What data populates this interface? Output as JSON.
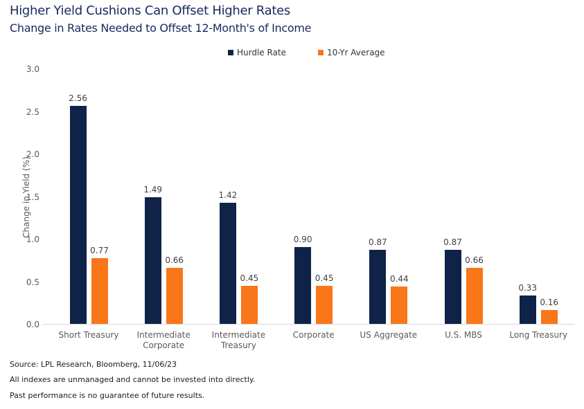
{
  "title": "Higher Yield Cushions Can Offset Higher Rates",
  "subtitle": "Change in Rates Needed to Offset 12-Month's of Income",
  "colors": {
    "title_navy": "#17295E",
    "hurdle_rate_navy": "#0F2248",
    "ten_yr_orange": "#F97619",
    "axis_text_gray": "#595959",
    "value_label_gray": "#404040",
    "baseline_gray": "#d9d9d9"
  },
  "legend": [
    {
      "label": "Hurdle Rate",
      "color": "#0F2248",
      "swatch_icon": "square-swatch"
    },
    {
      "label": "10-Yr Average",
      "color": "#F97619",
      "swatch_icon": "square-swatch"
    }
  ],
  "chart_data": {
    "type": "bar",
    "categories": [
      "Short Treasury",
      "Intermediate Corporate",
      "Intermediate Treasury",
      "Corporate",
      "US Aggregate",
      "U.S. MBS",
      "Long Treasury"
    ],
    "series": [
      {
        "name": "Hurdle Rate",
        "color": "#0F2248",
        "values": [
          2.56,
          1.49,
          1.42,
          0.9,
          0.87,
          0.87,
          0.33
        ]
      },
      {
        "name": "10-Yr Average",
        "color": "#F97619",
        "values": [
          0.77,
          0.66,
          0.45,
          0.45,
          0.44,
          0.66,
          0.16
        ]
      }
    ],
    "title": "Higher Yield Cushions Can Offset Higher Rates",
    "subtitle": "Change in Rates Needed to Offset 12-Month's of Income",
    "xlabel": "",
    "ylabel": "Change in Yield (%)",
    "ylim": [
      0.0,
      3.0
    ],
    "yticks": [
      "0.0",
      "0.5",
      "1.0",
      "1.5",
      "2.0",
      "2.5",
      "3.0"
    ],
    "grid": false,
    "legend_position": "top-center",
    "value_labels": true,
    "value_label_format": "2-decimals"
  },
  "footer": {
    "source": "Source: LPL Research, Bloomberg, 11/06/23",
    "disclaimer1": "All indexes are unmanaged and cannot be invested into directly.",
    "disclaimer2": "Past performance is no guarantee of future results."
  }
}
